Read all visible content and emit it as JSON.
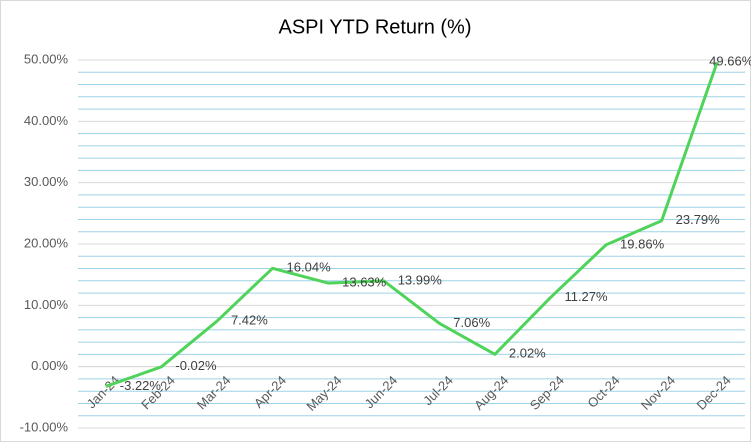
{
  "chart_data": {
    "type": "line",
    "title": "ASPI YTD Return (%)",
    "categories": [
      "Jan-24",
      "Feb-24",
      "Mar-24",
      "Apr-24",
      "May-24",
      "Jun-24",
      "Jul-24",
      "Aug-24",
      "Sep-24",
      "Oct-24",
      "Nov-24",
      "Dec-24"
    ],
    "series": [
      {
        "name": "ASPI YTD Return",
        "color": "#4fd35a",
        "values": [
          -3.22,
          -0.02,
          7.42,
          16.04,
          13.63,
          13.99,
          7.06,
          2.02,
          11.27,
          19.86,
          23.79,
          49.66
        ],
        "value_labels": [
          "-3.22%",
          "-0.02%",
          "7.42%",
          "16.04%",
          "13.63%",
          "13.99%",
          "7.06%",
          "2.02%",
          "11.27%",
          "19.86%",
          "23.79%",
          "49.66%"
        ]
      }
    ],
    "ylim": [
      -10,
      50
    ],
    "yticks": [
      {
        "value": -10,
        "label": "-10.00%"
      },
      {
        "value": 0,
        "label": "0.00%"
      },
      {
        "value": 10,
        "label": "10.00%"
      },
      {
        "value": 20,
        "label": "20.00%"
      },
      {
        "value": 30,
        "label": "30.00%"
      },
      {
        "value": 40,
        "label": "40.00%"
      },
      {
        "value": 50,
        "label": "50.00%"
      }
    ],
    "minor_yticks": [
      -8,
      -6,
      -4,
      -2,
      2,
      4,
      6,
      8,
      12,
      14,
      16,
      18,
      22,
      24,
      26,
      28,
      32,
      34,
      36,
      38,
      42,
      44,
      46,
      48
    ],
    "grid": true
  }
}
